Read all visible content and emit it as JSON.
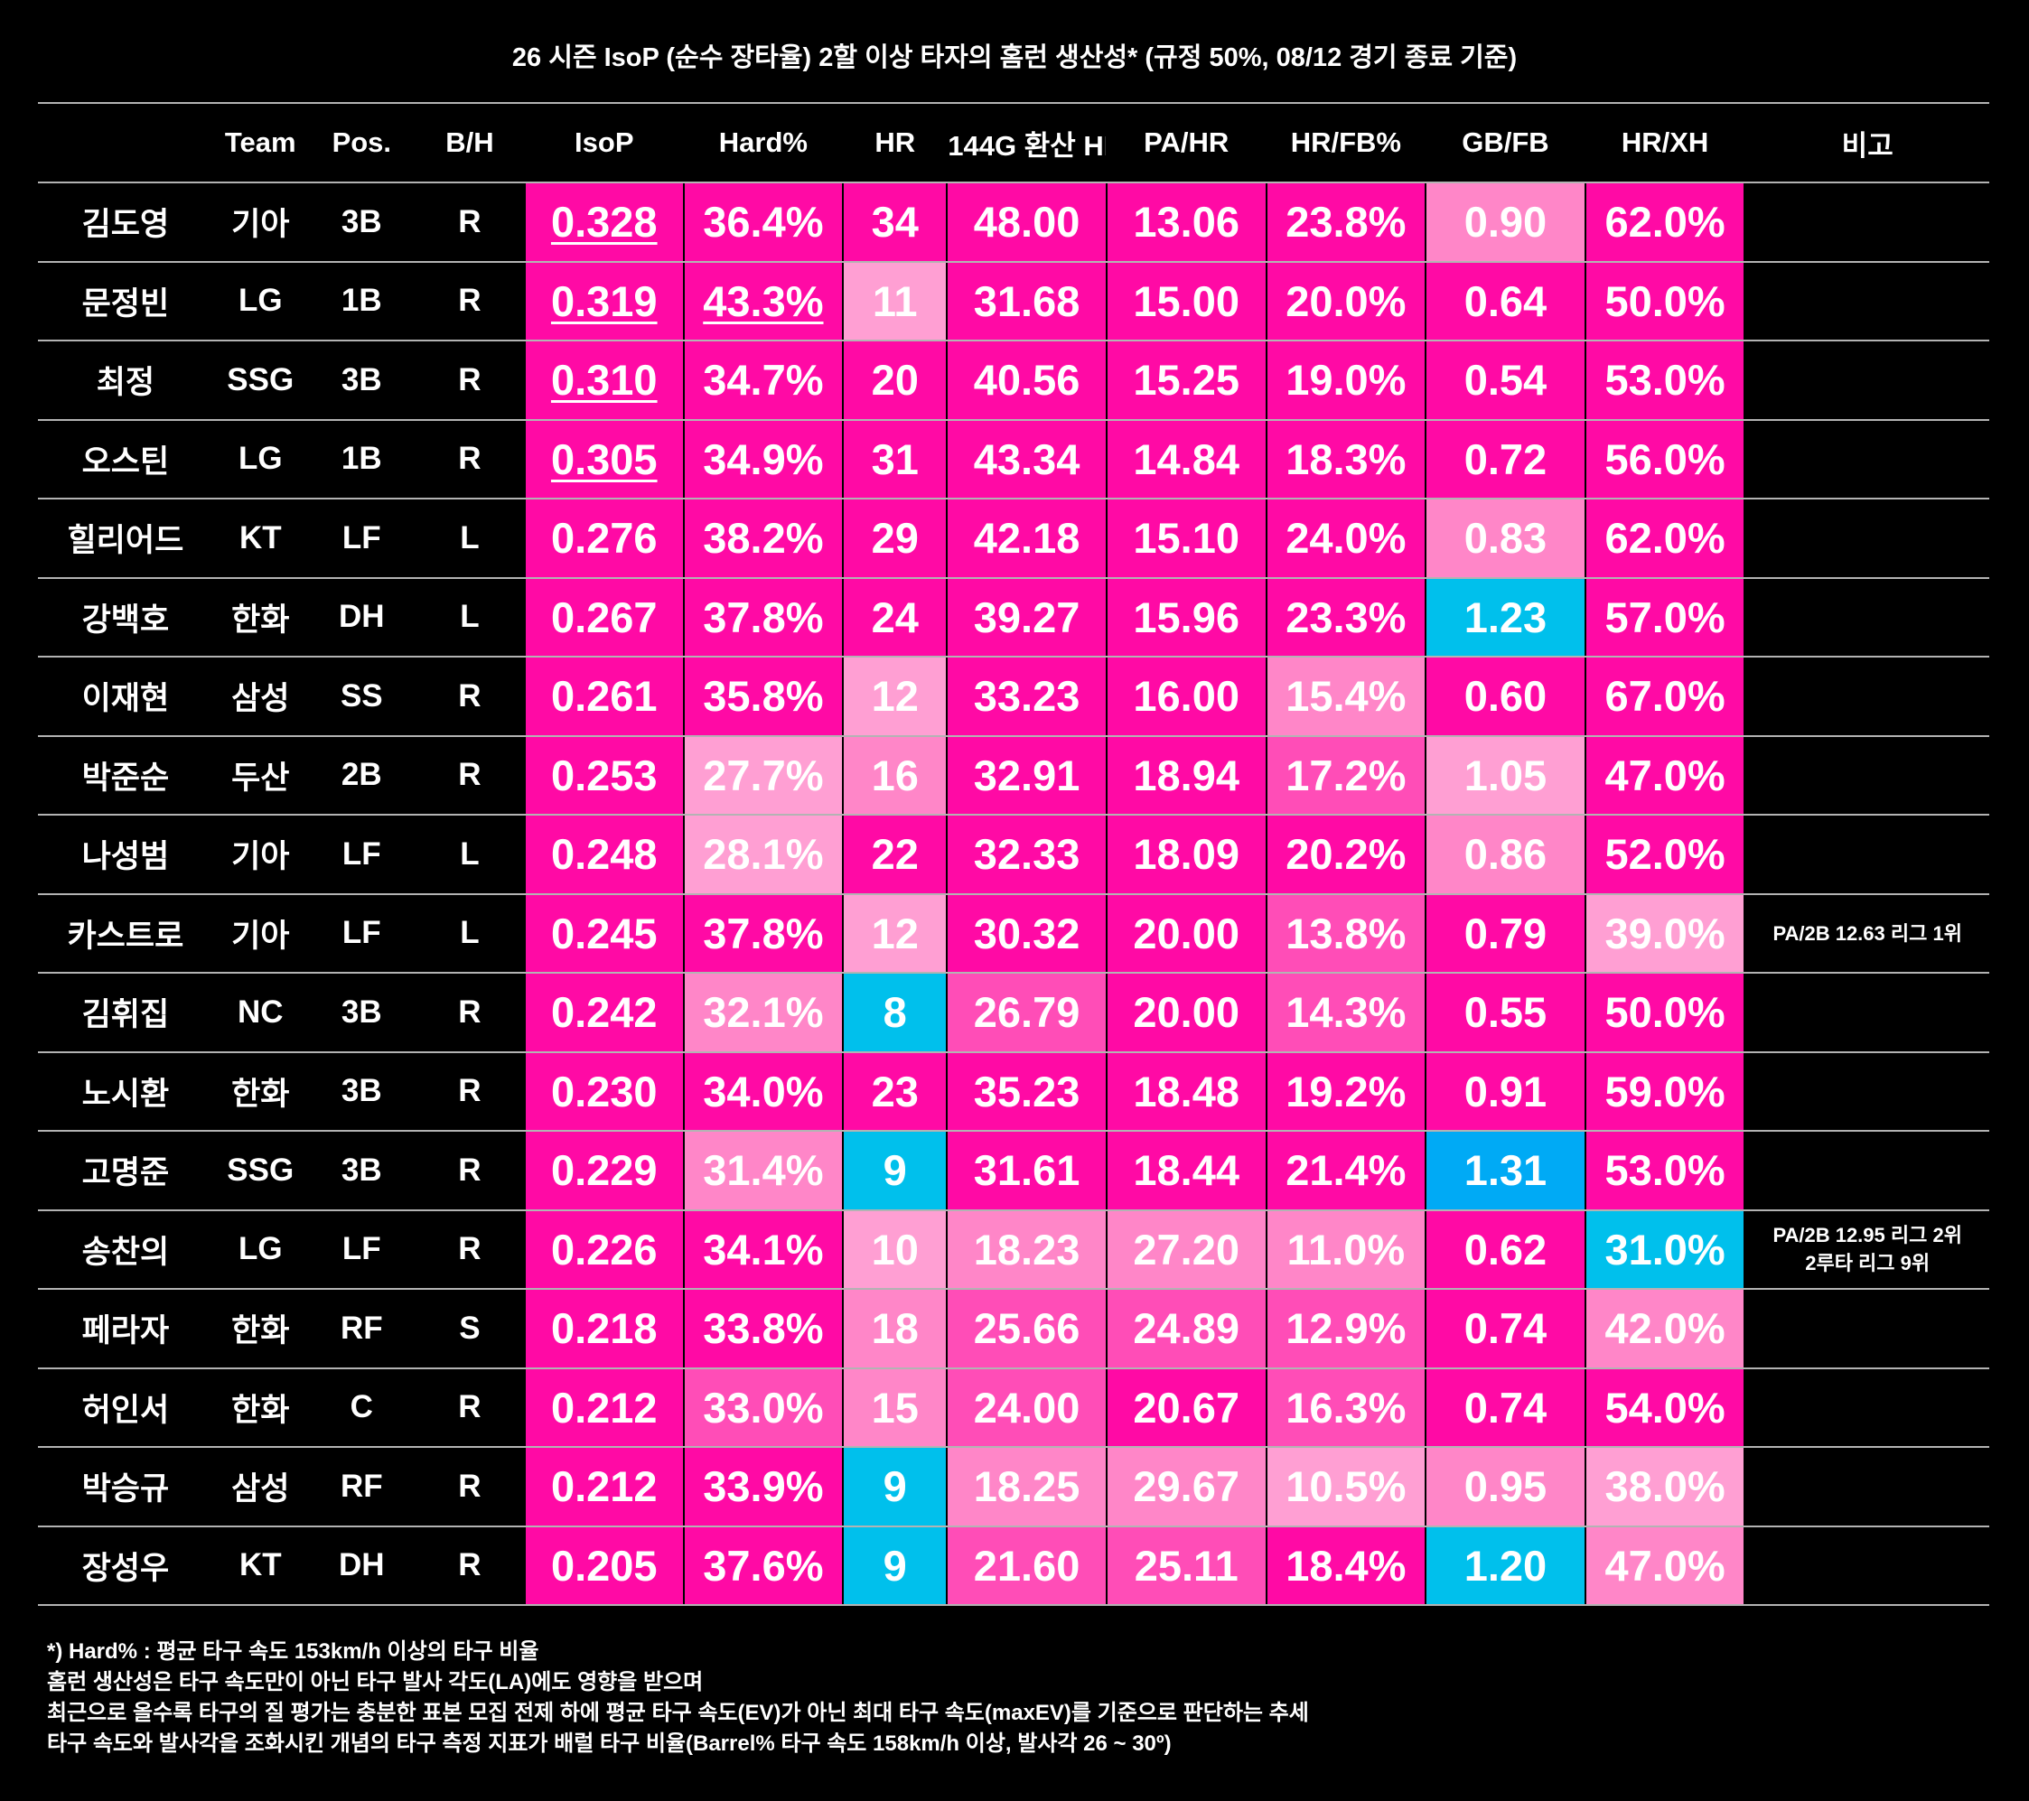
{
  "chart_data": {
    "type": "table",
    "title": "26 시즌 IsoP (순수 장타율) 2할 이상 타자의 홈런 생산성* (규정 50%, 08/12 경기 종료 기준)",
    "columns": [
      "",
      "Team",
      "Pos.",
      "B/H",
      "IsoP",
      "Hard%",
      "HR",
      "144G 환산 HR",
      "PA/HR",
      "HR/FB%",
      "GB/FB",
      "HR/XH",
      "비고"
    ],
    "rows": [
      {
        "name": "김도영",
        "team": "기아",
        "pos": "3B",
        "bh": "R",
        "isop": "0.328",
        "hard": "36.4%",
        "hr": "34",
        "hr144": "48.00",
        "pahr": "13.06",
        "hrfb": "23.8%",
        "gbfb": "0.90",
        "hrxh": "62.0%",
        "note": ""
      },
      {
        "name": "문정빈",
        "team": "LG",
        "pos": "1B",
        "bh": "R",
        "isop": "0.319",
        "hard": "43.3%",
        "hr": "11",
        "hr144": "31.68",
        "pahr": "15.00",
        "hrfb": "20.0%",
        "gbfb": "0.64",
        "hrxh": "50.0%",
        "note": ""
      },
      {
        "name": "최정",
        "team": "SSG",
        "pos": "3B",
        "bh": "R",
        "isop": "0.310",
        "hard": "34.7%",
        "hr": "20",
        "hr144": "40.56",
        "pahr": "15.25",
        "hrfb": "19.0%",
        "gbfb": "0.54",
        "hrxh": "53.0%",
        "note": ""
      },
      {
        "name": "오스틴",
        "team": "LG",
        "pos": "1B",
        "bh": "R",
        "isop": "0.305",
        "hard": "34.9%",
        "hr": "31",
        "hr144": "43.34",
        "pahr": "14.84",
        "hrfb": "18.3%",
        "gbfb": "0.72",
        "hrxh": "56.0%",
        "note": ""
      },
      {
        "name": "힐리어드",
        "team": "KT",
        "pos": "LF",
        "bh": "L",
        "isop": "0.276",
        "hard": "38.2%",
        "hr": "29",
        "hr144": "42.18",
        "pahr": "15.10",
        "hrfb": "24.0%",
        "gbfb": "0.83",
        "hrxh": "62.0%",
        "note": ""
      },
      {
        "name": "강백호",
        "team": "한화",
        "pos": "DH",
        "bh": "L",
        "isop": "0.267",
        "hard": "37.8%",
        "hr": "24",
        "hr144": "39.27",
        "pahr": "15.96",
        "hrfb": "23.3%",
        "gbfb": "1.23",
        "hrxh": "57.0%",
        "note": ""
      },
      {
        "name": "이재현",
        "team": "삼성",
        "pos": "SS",
        "bh": "R",
        "isop": "0.261",
        "hard": "35.8%",
        "hr": "12",
        "hr144": "33.23",
        "pahr": "16.00",
        "hrfb": "15.4%",
        "gbfb": "0.60",
        "hrxh": "67.0%",
        "note": ""
      },
      {
        "name": "박준순",
        "team": "두산",
        "pos": "2B",
        "bh": "R",
        "isop": "0.253",
        "hard": "27.7%",
        "hr": "16",
        "hr144": "32.91",
        "pahr": "18.94",
        "hrfb": "17.2%",
        "gbfb": "1.05",
        "hrxh": "47.0%",
        "note": ""
      },
      {
        "name": "나성범",
        "team": "기아",
        "pos": "LF",
        "bh": "L",
        "isop": "0.248",
        "hard": "28.1%",
        "hr": "22",
        "hr144": "32.33",
        "pahr": "18.09",
        "hrfb": "20.2%",
        "gbfb": "0.86",
        "hrxh": "52.0%",
        "note": ""
      },
      {
        "name": "카스트로",
        "team": "기아",
        "pos": "LF",
        "bh": "L",
        "isop": "0.245",
        "hard": "37.8%",
        "hr": "12",
        "hr144": "30.32",
        "pahr": "20.00",
        "hrfb": "13.8%",
        "gbfb": "0.79",
        "hrxh": "39.0%",
        "note": "PA/2B 12.63 리그 1위"
      },
      {
        "name": "김휘집",
        "team": "NC",
        "pos": "3B",
        "bh": "R",
        "isop": "0.242",
        "hard": "32.1%",
        "hr": "8",
        "hr144": "26.79",
        "pahr": "20.00",
        "hrfb": "14.3%",
        "gbfb": "0.55",
        "hrxh": "50.0%",
        "note": ""
      },
      {
        "name": "노시환",
        "team": "한화",
        "pos": "3B",
        "bh": "R",
        "isop": "0.230",
        "hard": "34.0%",
        "hr": "23",
        "hr144": "35.23",
        "pahr": "18.48",
        "hrfb": "19.2%",
        "gbfb": "0.91",
        "hrxh": "59.0%",
        "note": ""
      },
      {
        "name": "고명준",
        "team": "SSG",
        "pos": "3B",
        "bh": "R",
        "isop": "0.229",
        "hard": "31.4%",
        "hr": "9",
        "hr144": "31.61",
        "pahr": "18.44",
        "hrfb": "21.4%",
        "gbfb": "1.31",
        "hrxh": "53.0%",
        "note": ""
      },
      {
        "name": "송찬의",
        "team": "LG",
        "pos": "LF",
        "bh": "R",
        "isop": "0.226",
        "hard": "34.1%",
        "hr": "10",
        "hr144": "18.23",
        "pahr": "27.20",
        "hrfb": "11.0%",
        "gbfb": "0.62",
        "hrxh": "31.0%",
        "note": "PA/2B 12.95 리그 2위\n2루타 리그 9위"
      },
      {
        "name": "페라자",
        "team": "한화",
        "pos": "RF",
        "bh": "S",
        "isop": "0.218",
        "hard": "33.8%",
        "hr": "18",
        "hr144": "25.66",
        "pahr": "24.89",
        "hrfb": "12.9%",
        "gbfb": "0.74",
        "hrxh": "42.0%",
        "note": ""
      },
      {
        "name": "허인서",
        "team": "한화",
        "pos": "C",
        "bh": "R",
        "isop": "0.212",
        "hard": "33.0%",
        "hr": "15",
        "hr144": "24.00",
        "pahr": "20.67",
        "hrfb": "16.3%",
        "gbfb": "0.74",
        "hrxh": "54.0%",
        "note": ""
      },
      {
        "name": "박승규",
        "team": "삼성",
        "pos": "RF",
        "bh": "R",
        "isop": "0.212",
        "hard": "33.9%",
        "hr": "9",
        "hr144": "18.25",
        "pahr": "29.67",
        "hrfb": "10.5%",
        "gbfb": "0.95",
        "hrxh": "38.0%",
        "note": ""
      },
      {
        "name": "장성우",
        "team": "KT",
        "pos": "DH",
        "bh": "R",
        "isop": "0.205",
        "hard": "37.6%",
        "hr": "9",
        "hr144": "21.60",
        "pahr": "25.11",
        "hrfb": "18.4%",
        "gbfb": "1.20",
        "hrxh": "47.0%",
        "note": ""
      }
    ],
    "underlined": {
      "isop": [
        0,
        1,
        2,
        3
      ],
      "hard": [
        1
      ]
    },
    "heat_colors": {
      "strong": "#ff0aa5",
      "medium": "#ff4db7",
      "light": "#ff86c8",
      "pale": "#ff9fd3",
      "cyan": "#00c0ec",
      "blue": "#00aaf5"
    },
    "heat_map": {
      "isop": [
        "strong",
        "strong",
        "strong",
        "strong",
        "strong",
        "strong",
        "strong",
        "strong",
        "strong",
        "strong",
        "strong",
        "strong",
        "strong",
        "strong",
        "strong",
        "strong",
        "strong",
        "strong"
      ],
      "hard": [
        "strong",
        "strong",
        "strong",
        "strong",
        "strong",
        "strong",
        "strong",
        "pale",
        "pale",
        "strong",
        "light",
        "strong",
        "light",
        "strong",
        "strong",
        "medium",
        "strong",
        "strong"
      ],
      "hr": [
        "strong",
        "pale",
        "strong",
        "strong",
        "strong",
        "strong",
        "pale",
        "light",
        "strong",
        "pale",
        "cyan",
        "strong",
        "cyan",
        "pale",
        "light",
        "light",
        "cyan",
        "cyan"
      ],
      "hr144": [
        "strong",
        "strong",
        "strong",
        "strong",
        "strong",
        "strong",
        "strong",
        "strong",
        "strong",
        "strong",
        "medium",
        "strong",
        "strong",
        "light",
        "medium",
        "medium",
        "light",
        "medium"
      ],
      "pahr": [
        "strong",
        "strong",
        "strong",
        "strong",
        "strong",
        "strong",
        "strong",
        "strong",
        "strong",
        "strong",
        "strong",
        "strong",
        "strong",
        "light",
        "medium",
        "strong",
        "light",
        "medium"
      ],
      "hrfb": [
        "strong",
        "strong",
        "strong",
        "strong",
        "strong",
        "strong",
        "light",
        "medium",
        "strong",
        "medium",
        "medium",
        "strong",
        "strong",
        "light",
        "medium",
        "medium",
        "pale",
        "strong"
      ],
      "gbfb": [
        "light",
        "strong",
        "strong",
        "strong",
        "light",
        "cyan",
        "strong",
        "pale",
        "light",
        "strong",
        "strong",
        "strong",
        "blue",
        "strong",
        "strong",
        "strong",
        "light",
        "cyan"
      ],
      "hrxh": [
        "strong",
        "strong",
        "strong",
        "strong",
        "strong",
        "strong",
        "strong",
        "strong",
        "strong",
        "pale",
        "strong",
        "strong",
        "strong",
        "cyan",
        "light",
        "strong",
        "pale",
        "light"
      ]
    }
  },
  "footnote": [
    "*) Hard% :  평균 타구 속도 153km/h 이상의 타구 비율",
    "홈런 생산성은 타구 속도만이 아닌 타구 발사 각도(LA)에도 영향을 받으며",
    "최근으로 올수록 타구의 질 평가는 충분한 표본 모집 전제 하에 평균 타구 속도(EV)가 아닌 최대 타구 속도(maxEV)를 기준으로 판단하는 추세",
    "타구 속도와 발사각을 조화시킨 개념의 타구 측정 지표가 배럴 타구 비율(Barrel% 타구 속도 158km/h 이상, 발사각 26 ~ 30º)"
  ]
}
